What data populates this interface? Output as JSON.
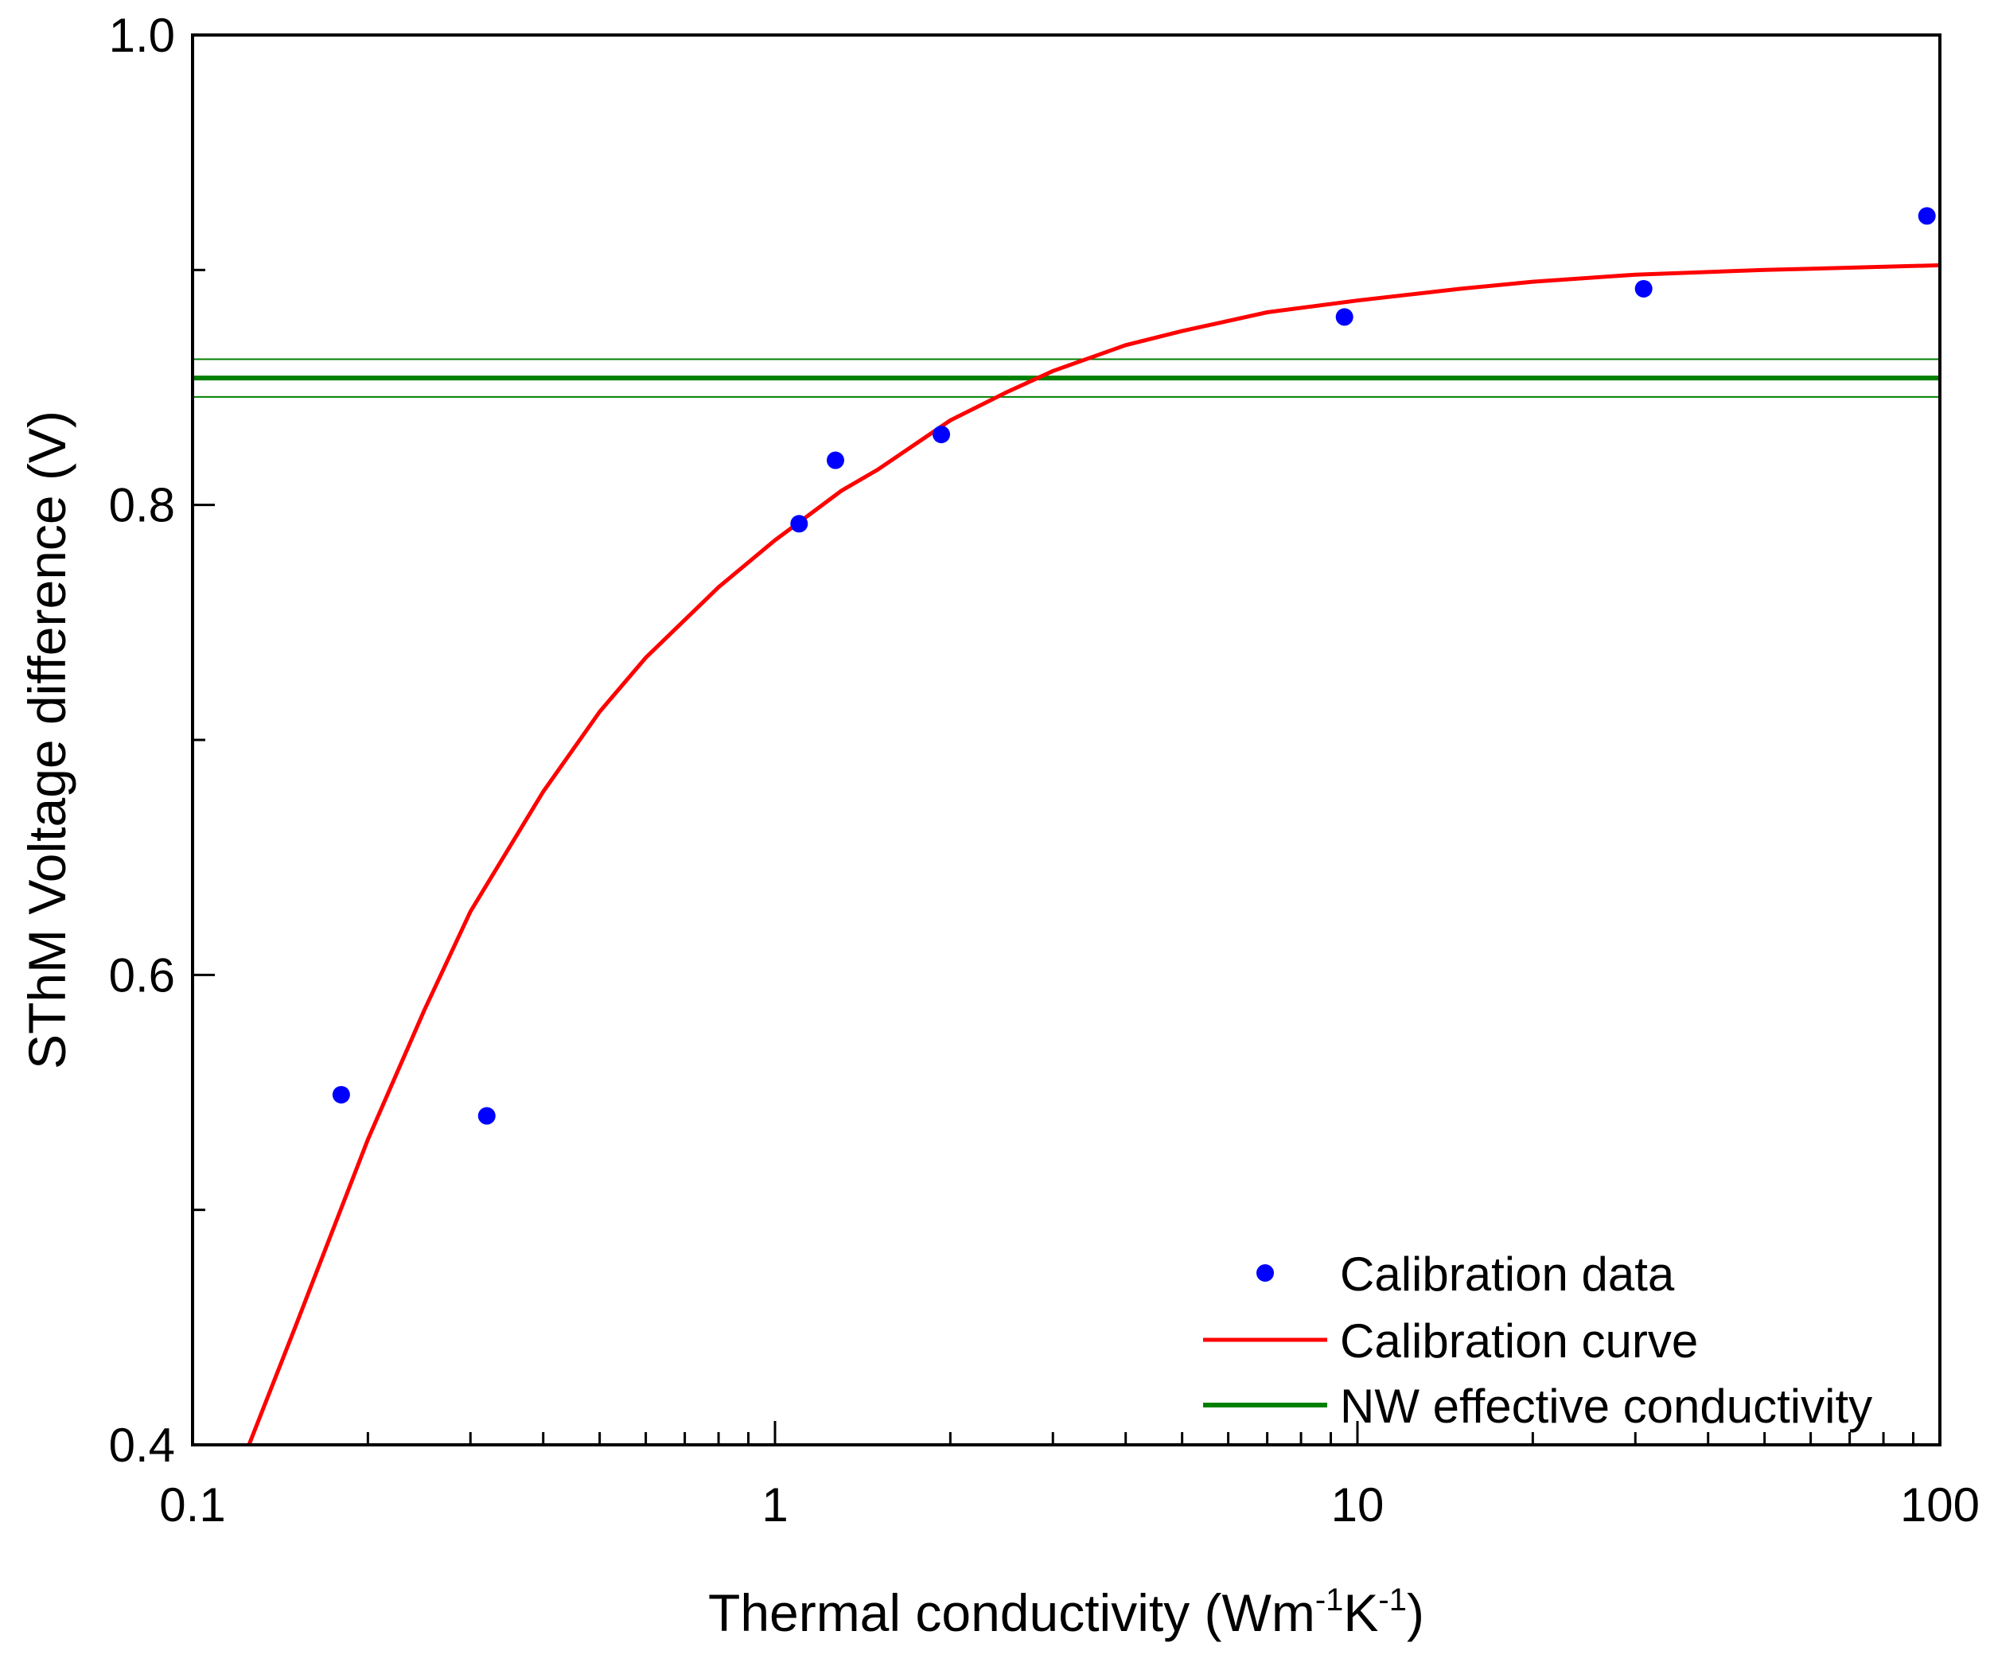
{
  "chart_data": {
    "type": "scatter",
    "title": "",
    "xlabel": {
      "prefix": "Thermal conductivity (Wm",
      "exp1": "-1",
      "mid": "K",
      "exp2": "-1",
      "suffix": ")"
    },
    "ylabel": "SThM Voltage difference (V)",
    "xscale": "log",
    "xlim": [
      0.1,
      100
    ],
    "ylim": [
      0.4,
      1.0
    ],
    "xticks": [
      {
        "value": 0.1,
        "label": "0.1"
      },
      {
        "value": 1,
        "label": "1"
      },
      {
        "value": 10,
        "label": "10"
      },
      {
        "value": 100,
        "label": "100"
      }
    ],
    "yticks": [
      {
        "value": 0.4,
        "label": "0.4"
      },
      {
        "value": 0.6,
        "label": "0.6"
      },
      {
        "value": 0.8,
        "label": "0.8"
      },
      {
        "value": 1.0,
        "label": "1.0"
      }
    ],
    "y_minor_ticks": [
      0.5,
      0.7,
      0.9
    ],
    "legend_position": "bottom-right",
    "series": [
      {
        "name": "Calibration data",
        "kind": "scatter",
        "color": "#0000ff",
        "points": [
          {
            "x": 0.18,
            "y": 0.549
          },
          {
            "x": 0.32,
            "y": 0.54
          },
          {
            "x": 1.1,
            "y": 0.792
          },
          {
            "x": 1.27,
            "y": 0.819
          },
          {
            "x": 1.93,
            "y": 0.83
          },
          {
            "x": 9.5,
            "y": 0.88
          },
          {
            "x": 31,
            "y": 0.892
          },
          {
            "x": 95,
            "y": 0.923
          }
        ]
      },
      {
        "name": "Calibration curve",
        "kind": "line",
        "color": "#ff0000",
        "points": [
          {
            "x": 0.125,
            "y": 0.4
          },
          {
            "x": 0.15,
            "y": 0.45
          },
          {
            "x": 0.2,
            "y": 0.53
          },
          {
            "x": 0.25,
            "y": 0.585
          },
          {
            "x": 0.3,
            "y": 0.627
          },
          {
            "x": 0.4,
            "y": 0.678
          },
          {
            "x": 0.5,
            "y": 0.712
          },
          {
            "x": 0.6,
            "y": 0.735
          },
          {
            "x": 0.8,
            "y": 0.765
          },
          {
            "x": 1.0,
            "y": 0.785
          },
          {
            "x": 1.3,
            "y": 0.806
          },
          {
            "x": 1.5,
            "y": 0.815
          },
          {
            "x": 2.0,
            "y": 0.836
          },
          {
            "x": 2.5,
            "y": 0.848
          },
          {
            "x": 3.0,
            "y": 0.857
          },
          {
            "x": 4.0,
            "y": 0.868
          },
          {
            "x": 5.0,
            "y": 0.874
          },
          {
            "x": 7.0,
            "y": 0.882
          },
          {
            "x": 10,
            "y": 0.887
          },
          {
            "x": 15,
            "y": 0.892
          },
          {
            "x": 20,
            "y": 0.895
          },
          {
            "x": 30,
            "y": 0.898
          },
          {
            "x": 50,
            "y": 0.9
          },
          {
            "x": 100,
            "y": 0.902
          }
        ]
      },
      {
        "name": "NW effective conductivity",
        "kind": "hline",
        "color": "#008000",
        "y": 0.854,
        "band": [
          0.846,
          0.862
        ]
      }
    ]
  }
}
